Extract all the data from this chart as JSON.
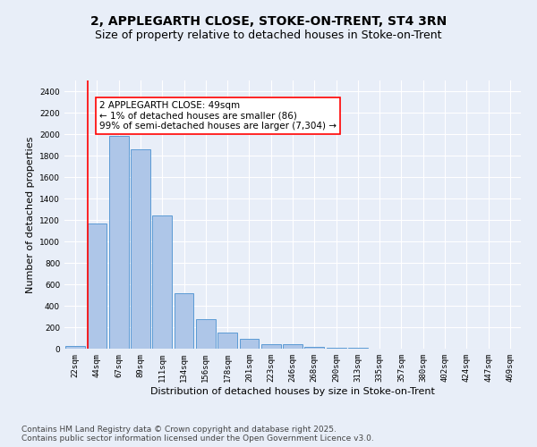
{
  "title_line1": "2, APPLEGARTH CLOSE, STOKE-ON-TRENT, ST4 3RN",
  "title_line2": "Size of property relative to detached houses in Stoke-on-Trent",
  "xlabel": "Distribution of detached houses by size in Stoke-on-Trent",
  "ylabel": "Number of detached properties",
  "categories": [
    "22sqm",
    "44sqm",
    "67sqm",
    "89sqm",
    "111sqm",
    "134sqm",
    "156sqm",
    "178sqm",
    "201sqm",
    "223sqm",
    "246sqm",
    "268sqm",
    "290sqm",
    "313sqm",
    "335sqm",
    "357sqm",
    "380sqm",
    "402sqm",
    "424sqm",
    "447sqm",
    "469sqm"
  ],
  "values": [
    25,
    1170,
    1980,
    1855,
    1245,
    520,
    275,
    150,
    90,
    45,
    40,
    20,
    10,
    5,
    3,
    2,
    2,
    2,
    2,
    2,
    2
  ],
  "bar_color": "#aec6e8",
  "bar_edge_color": "#5b9bd5",
  "vline_color": "red",
  "annotation_text": "2 APPLEGARTH CLOSE: 49sqm\n← 1% of detached houses are smaller (86)\n99% of semi-detached houses are larger (7,304) →",
  "annotation_box_color": "white",
  "annotation_box_edge_color": "red",
  "ylim": [
    0,
    2500
  ],
  "yticks": [
    0,
    200,
    400,
    600,
    800,
    1000,
    1200,
    1400,
    1600,
    1800,
    2000,
    2200,
    2400
  ],
  "bg_color": "#e8eef8",
  "grid_color": "white",
  "footer_line1": "Contains HM Land Registry data © Crown copyright and database right 2025.",
  "footer_line2": "Contains public sector information licensed under the Open Government Licence v3.0.",
  "title_fontsize": 10,
  "subtitle_fontsize": 9,
  "axis_label_fontsize": 8,
  "tick_fontsize": 6.5,
  "annotation_fontsize": 7.5,
  "footer_fontsize": 6.5
}
